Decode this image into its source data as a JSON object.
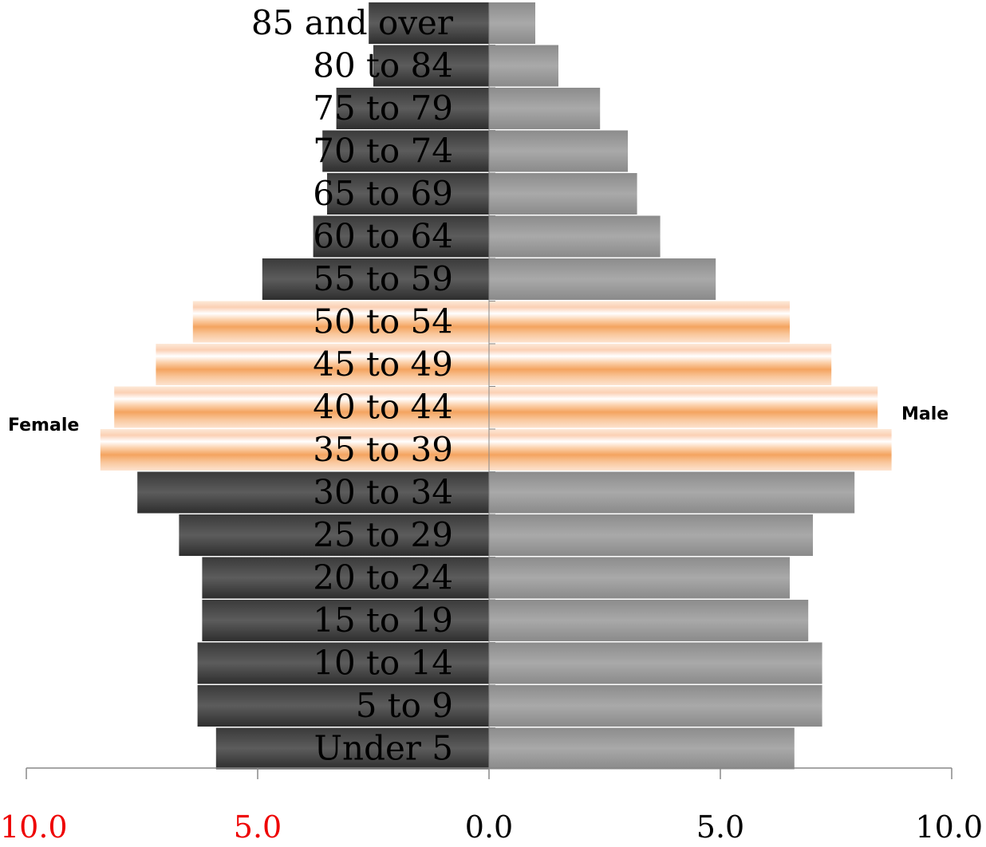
{
  "chart_data": {
    "type": "bar",
    "orientation": "horizontal",
    "subtype": "population-pyramid",
    "categories": [
      "85 and over",
      "80 to 84",
      "75 to 79",
      "70 to 74",
      "65 to 69",
      "60 to 64",
      "55 to 59",
      "50 to 54",
      "45 to 49",
      "40 to 44",
      "35 to 39",
      "30 to 34",
      "25 to 29",
      "20 to 24",
      "15 to 19",
      "10 to 14",
      "5 to 9",
      "Under 5"
    ],
    "series": [
      {
        "name": "Female",
        "values": [
          2.6,
          2.5,
          3.3,
          3.6,
          3.5,
          3.8,
          4.9,
          6.4,
          7.2,
          8.1,
          8.4,
          7.6,
          6.7,
          6.2,
          6.2,
          6.3,
          6.3,
          5.9
        ],
        "color": "#555555"
      },
      {
        "name": "Male",
        "values": [
          1.0,
          1.5,
          2.4,
          3.0,
          3.2,
          3.7,
          4.9,
          6.5,
          7.4,
          8.4,
          8.7,
          7.9,
          7.0,
          6.5,
          6.9,
          7.2,
          7.2,
          6.6
        ],
        "color": "#a0a0a0"
      }
    ],
    "highlight_categories": [
      "50 to 54",
      "45 to 49",
      "40 to 44",
      "35 to 39"
    ],
    "highlight_color": "#f4a460",
    "xlim": [
      -10,
      10
    ],
    "xticks": [
      {
        "value": -10,
        "label": "10.0"
      },
      {
        "value": -5,
        "label": "5.0"
      },
      {
        "value": 0,
        "label": "0.0"
      },
      {
        "value": 5,
        "label": "5.0"
      },
      {
        "value": 10,
        "label": "10.0"
      }
    ],
    "negative_tick_color": "#ee0000",
    "positive_tick_color": "#000000",
    "left_label": "Female",
    "right_label": "Male",
    "grid": false
  }
}
